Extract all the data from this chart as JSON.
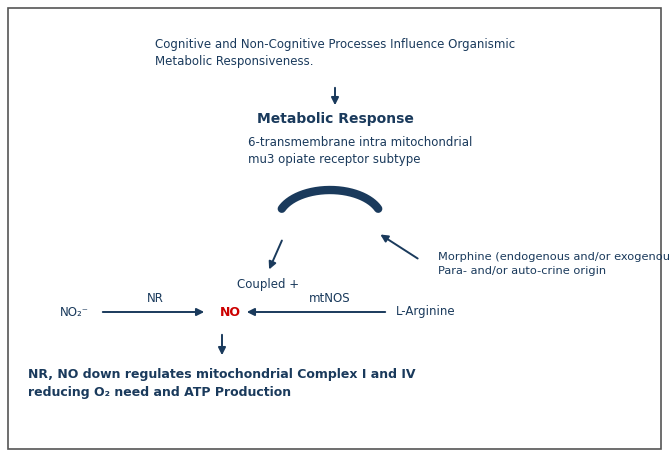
{
  "bg_color": "#ffffff",
  "border_color": "#555555",
  "arrow_color": "#1a3a5c",
  "text_color": "#1a3a5c",
  "red_color": "#cc0000",
  "figsize": [
    6.69,
    4.57
  ],
  "dpi": 100,
  "texts": {
    "top_text": "Cognitive and Non-Cognitive Processes Influence Organismic\nMetabolic Responsiveness.",
    "metabolic_response": "Metabolic Response",
    "transmembrane": "6-transmembrane intra mitochondrial\nmu3 opiate receptor subtype",
    "coupled": "Coupled +",
    "morphine": "Morphine (endogenous and/or exogenous):\nPara- and/or auto-crine origin",
    "no2": "NO₂⁻",
    "nr": "NR",
    "no": "NO",
    "mtnos": "mtNOS",
    "l_arginine": "L-Arginine",
    "bottom": "NR, NO down regulates mitochondrial Complex I and IV\nreducing O₂ need and ATP Production"
  }
}
